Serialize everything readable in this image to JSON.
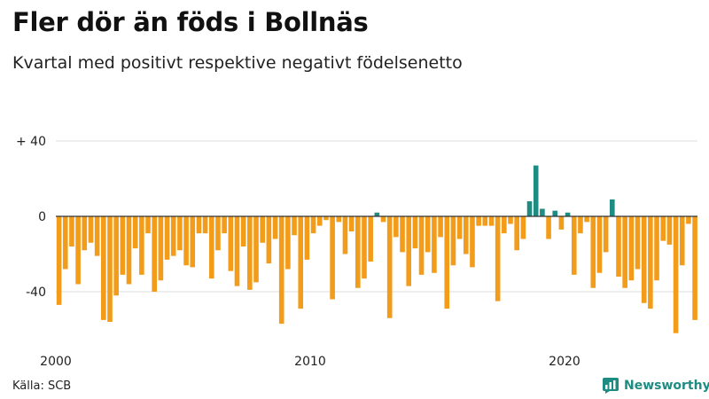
{
  "title": "Fler dör än föds i Bollnäs",
  "subtitle": "Kvartal med positivt respektive negativt födelsenetto",
  "source": "Källa: SCB",
  "brand": "Newsworthy",
  "colors": {
    "negative": "#f39c1a",
    "positive": "#1e8c82",
    "zero_line": "#333333",
    "grid": "#dddddd"
  },
  "chart_data": {
    "type": "bar",
    "title": "Fler dör än föds i Bollnäs",
    "subtitle": "Kvartal med positivt respektive negativt födelsenetto",
    "xlabel": "",
    "ylabel": "",
    "ylim": [
      -65,
      45
    ],
    "y_ticks": [
      {
        "value": 40,
        "label": "+ 40"
      },
      {
        "value": 0,
        "label": "0"
      },
      {
        "value": -40,
        "label": "-40"
      }
    ],
    "x_ticks": [
      {
        "value": 2000,
        "label": "2000"
      },
      {
        "value": 2010,
        "label": "2010"
      },
      {
        "value": 2020,
        "label": "2020"
      }
    ],
    "x_start": 2000,
    "period": "quarter",
    "grid": true,
    "values": [
      -47,
      -28,
      -16,
      -36,
      -18,
      -14,
      -21,
      -55,
      -56,
      -42,
      -31,
      -36,
      -17,
      -31,
      -9,
      -40,
      -34,
      -23,
      -21,
      -18,
      -26,
      -27,
      -9,
      -9,
      -33,
      -18,
      -9,
      -29,
      -37,
      -16,
      -39,
      -35,
      -14,
      -25,
      -12,
      -57,
      -28,
      -10,
      -49,
      -23,
      -9,
      -5,
      -2,
      -44,
      -3,
      -20,
      -8,
      -38,
      -33,
      -24,
      2,
      -3,
      -54,
      -11,
      -19,
      -37,
      -17,
      -31,
      -19,
      -30,
      -11,
      -49,
      -26,
      -12,
      -20,
      -27,
      -5,
      -5,
      -5,
      -45,
      -9,
      -4,
      -18,
      -12,
      8,
      27,
      4,
      -12,
      3,
      -7,
      2,
      -31,
      -9,
      -3,
      -38,
      -30,
      -19,
      9,
      -32,
      -38,
      -34,
      -28,
      -46,
      -49,
      -34,
      -13,
      -15,
      -62,
      -26,
      -4,
      -55
    ]
  }
}
